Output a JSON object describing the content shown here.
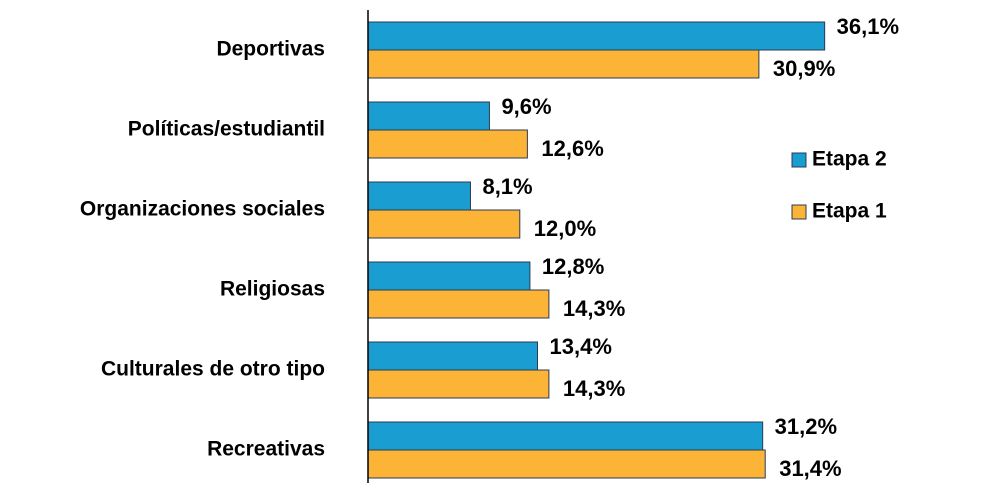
{
  "chart_data": {
    "type": "bar",
    "orientation": "horizontal",
    "categories": [
      "Deportivas",
      "Políticas/estudiantil",
      "Organizaciones sociales",
      "Religiosas",
      "Culturales de otro tipo",
      "Recreativas"
    ],
    "series": [
      {
        "name": "Etapa 2",
        "color": "#1a9dd0",
        "values": [
          36.1,
          9.6,
          8.1,
          12.8,
          13.4,
          31.2
        ],
        "value_labels": [
          "36,1%",
          "9,6%",
          "8,1%",
          "12,8%",
          "13,4%",
          "31,2%"
        ]
      },
      {
        "name": "Etapa 1",
        "color": "#fbb436",
        "values": [
          30.9,
          12.6,
          12.0,
          14.3,
          14.3,
          31.4
        ],
        "value_labels": [
          "30,9%",
          "12,6%",
          "12,0%",
          "14,3%",
          "14,3%",
          "31,4%"
        ]
      }
    ],
    "xlim": [
      0,
      40
    ],
    "legend": "right"
  }
}
